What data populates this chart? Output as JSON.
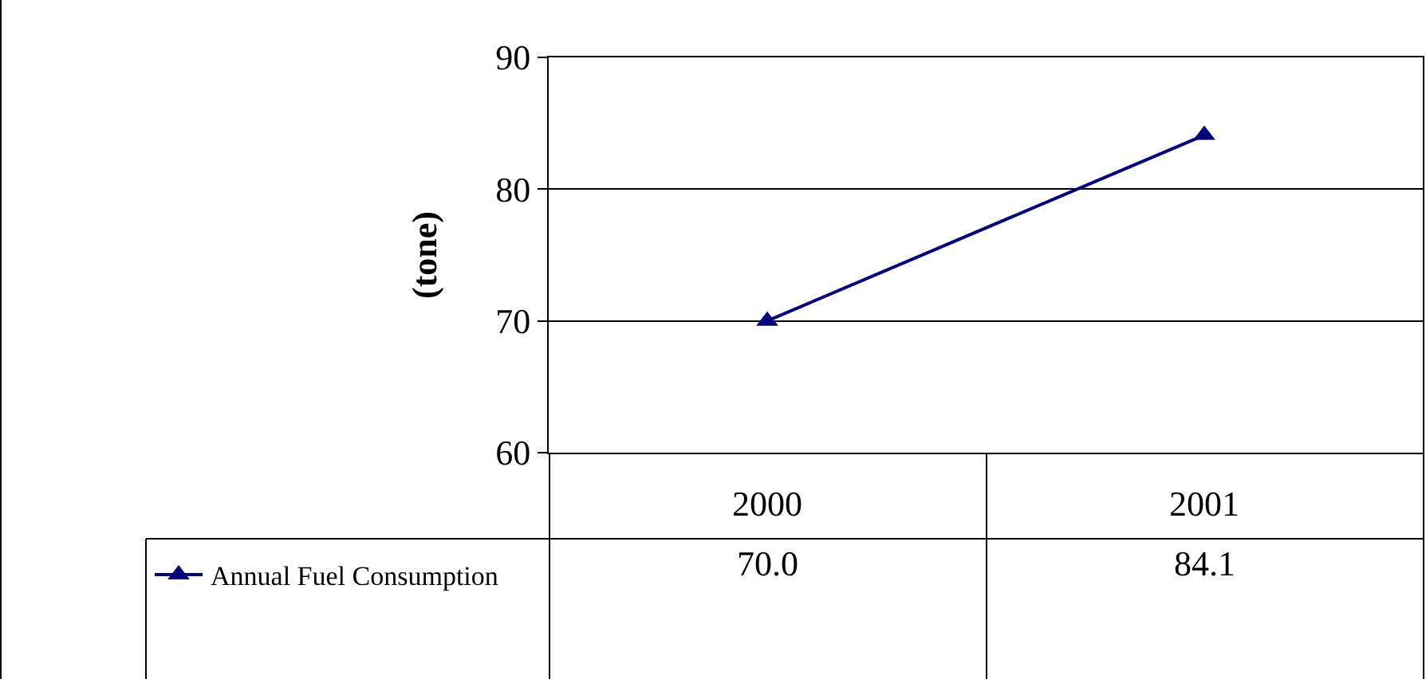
{
  "chart_data": {
    "type": "line",
    "ylabel": "(tone)",
    "categories": [
      "2000",
      "2001"
    ],
    "series": [
      {
        "name": "Annual Fuel Consumption",
        "color": "#000080",
        "values": [
          70.0,
          84.1
        ],
        "value_labels": [
          "70.0",
          "84.1"
        ]
      }
    ],
    "ylim": [
      60,
      90
    ],
    "yticks": [
      60,
      70,
      80,
      90
    ],
    "grid": "y",
    "legend": "bottom left",
    "marker": "triangle",
    "line_style": "solid"
  }
}
